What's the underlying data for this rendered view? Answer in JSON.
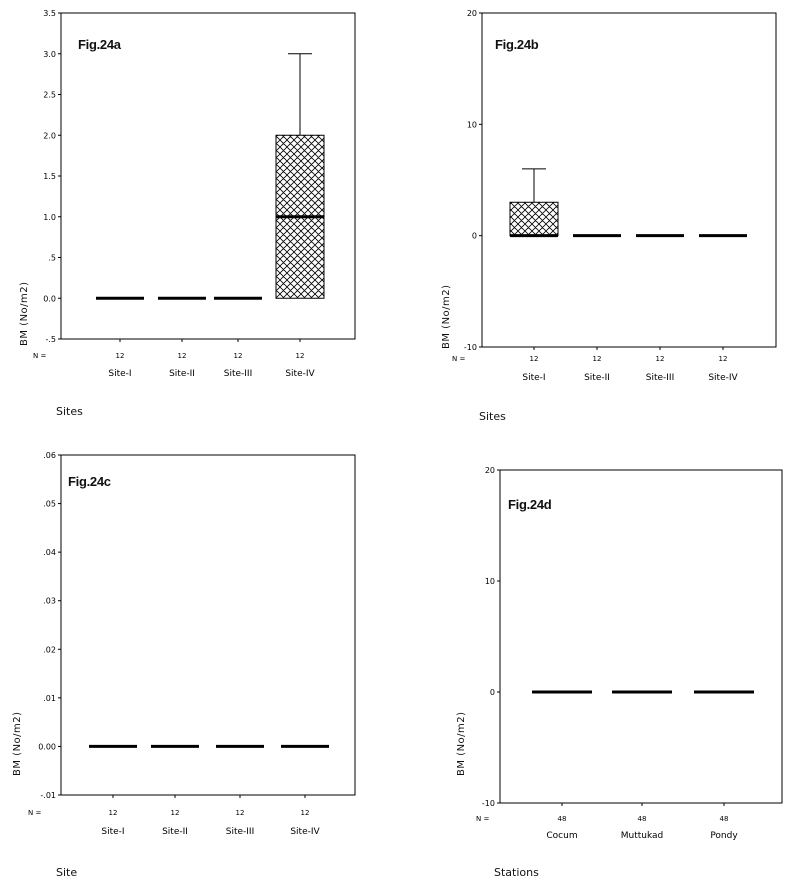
{
  "chart_data": [
    {
      "type": "boxplot",
      "label": "Fig.24a",
      "ylabel": "BM  (No/m2)",
      "xlabel": "Sites",
      "n_label": "N =",
      "ylim": [
        -0.5,
        3.5
      ],
      "yticks": [
        -0.5,
        0.0,
        0.5,
        1.0,
        1.5,
        2.0,
        2.5,
        3.0,
        3.5
      ],
      "ytick_labels": [
        "-.5",
        "0.0",
        ".5",
        "1.0",
        "1.5",
        "2.0",
        "2.5",
        "3.0",
        "3.5"
      ],
      "categories": [
        "Site-I",
        "Site-II",
        "Site-III",
        "Site-IV"
      ],
      "n": [
        "12",
        "12",
        "12",
        "12"
      ],
      "boxes": [
        {
          "min": 0,
          "q1": 0,
          "median": 0,
          "q3": 0,
          "max": 0
        },
        {
          "min": 0,
          "q1": 0,
          "median": 0,
          "q3": 0,
          "max": 0
        },
        {
          "min": 0,
          "q1": 0,
          "median": 0,
          "q3": 0,
          "max": 0
        },
        {
          "min": 0,
          "q1": 0,
          "median": 1,
          "q3": 2,
          "max": 3
        }
      ]
    },
    {
      "type": "boxplot",
      "label": "Fig.24b",
      "ylabel": "BM  (No/m2)",
      "xlabel": "Sites",
      "n_label": "N =",
      "ylim": [
        -10,
        20
      ],
      "yticks": [
        -10,
        0,
        10,
        20
      ],
      "ytick_labels": [
        "-10",
        "0",
        "10",
        "20"
      ],
      "categories": [
        "Site-I",
        "Site-II",
        "Site-III",
        "Site-IV"
      ],
      "n": [
        "12",
        "12",
        "12",
        "12"
      ],
      "boxes": [
        {
          "min": 0,
          "q1": 0,
          "median": 0,
          "q3": 3,
          "max": 6
        },
        {
          "min": 0,
          "q1": 0,
          "median": 0,
          "q3": 0,
          "max": 0
        },
        {
          "min": 0,
          "q1": 0,
          "median": 0,
          "q3": 0,
          "max": 0
        },
        {
          "min": 0,
          "q1": 0,
          "median": 0,
          "q3": 0,
          "max": 0
        }
      ]
    },
    {
      "type": "boxplot",
      "label": "Fig.24c",
      "ylabel": "BM  (No/m2)",
      "xlabel": "Site",
      "n_label": "N =",
      "ylim": [
        -0.01,
        0.06
      ],
      "yticks": [
        -0.01,
        0.0,
        0.01,
        0.02,
        0.03,
        0.04,
        0.05,
        0.06
      ],
      "ytick_labels": [
        "-.01",
        "0.00",
        ".01",
        ".02",
        ".03",
        ".04",
        ".05",
        ".06"
      ],
      "categories": [
        "Site-I",
        "Site-II",
        "Site-III",
        "Site-IV"
      ],
      "n": [
        "12",
        "12",
        "12",
        "12"
      ],
      "boxes": [
        {
          "min": 0,
          "q1": 0,
          "median": 0,
          "q3": 0,
          "max": 0
        },
        {
          "min": 0,
          "q1": 0,
          "median": 0,
          "q3": 0,
          "max": 0
        },
        {
          "min": 0,
          "q1": 0,
          "median": 0,
          "q3": 0,
          "max": 0
        },
        {
          "min": 0,
          "q1": 0,
          "median": 0,
          "q3": 0,
          "max": 0
        }
      ]
    },
    {
      "type": "boxplot",
      "label": "Fig.24d",
      "ylabel": "BM  (No/m2)",
      "xlabel": "Stations",
      "n_label": "N =",
      "ylim": [
        -10,
        20
      ],
      "yticks": [
        -10,
        0,
        10,
        20
      ],
      "ytick_labels": [
        "-10",
        "0",
        "10",
        "20"
      ],
      "categories": [
        "Cocum",
        "Muttukad",
        "Pondy"
      ],
      "n": [
        "48",
        "48",
        "48"
      ],
      "boxes": [
        {
          "min": 0,
          "q1": 0,
          "median": 0,
          "q3": 0,
          "max": 0
        },
        {
          "min": 0,
          "q1": 0,
          "median": 0,
          "q3": 0,
          "max": 0
        },
        {
          "min": 0,
          "q1": 0,
          "median": 0,
          "q3": 0,
          "max": 0
        }
      ]
    }
  ],
  "colors": {
    "axis": "#000000",
    "box_fill": "#ffffff",
    "hatch": "#000000",
    "background": "#ffffff"
  }
}
